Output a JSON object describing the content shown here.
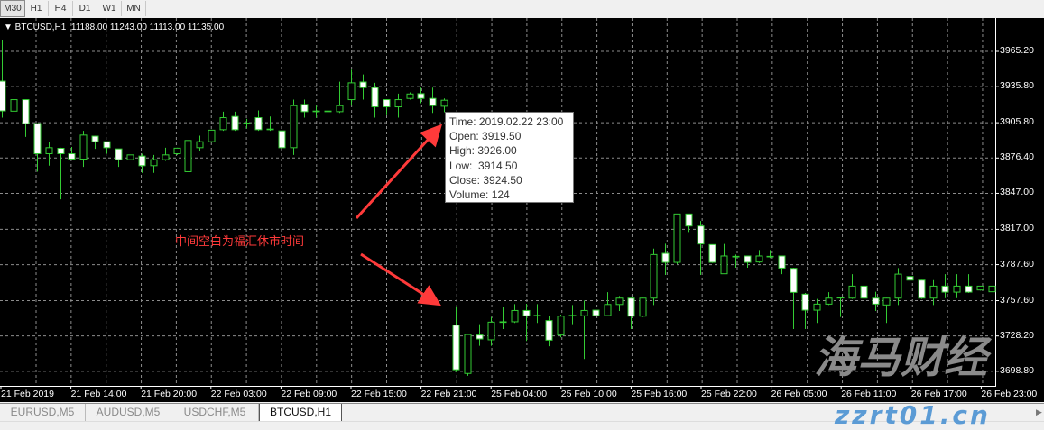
{
  "timeframes": [
    "M30",
    "H1",
    "H4",
    "D1",
    "W1",
    "MN"
  ],
  "selected_timeframe": "M30",
  "chart_header": "▼ BTCUSD,H1  11188.00 11243.00 11113.00 11135.00",
  "tooltip": {
    "time": "Time: 2019.02.22 23:00",
    "open": "Open: 3919.50",
    "high": "High: 3926.00",
    "low": "Low:  3914.50",
    "close": "Close: 3924.50",
    "volume": "Volume: 124"
  },
  "annotation": "中间空白为福汇休市时间",
  "watermark": {
    "logo": "海马财经",
    "site": "zzrt01.cn"
  },
  "tabs": [
    {
      "label": "EURUSD,M5",
      "active": false
    },
    {
      "label": "AUDUSD,M5",
      "active": false
    },
    {
      "label": "USDCHF,M5",
      "active": false
    },
    {
      "label": "BTCUSD,H1",
      "active": true
    }
  ],
  "colors": {
    "background": "#000000",
    "candle": "#33cc33",
    "bear_body": "#ffffff",
    "bull_body": "#000000",
    "grid": "#8c8c8c",
    "annotation": "#ff3a3a"
  },
  "chart_data": {
    "type": "candlestick",
    "symbol": "BTCUSD,H1",
    "ylim": [
      3690,
      3985
    ],
    "y_ticks": [
      "3965.20",
      "3935.80",
      "3905.80",
      "3876.40",
      "3847.00",
      "3817.00",
      "3787.60",
      "3757.60",
      "3728.20",
      "3698.80"
    ],
    "x_ticks": [
      "21 Feb 2019",
      "21 Feb 14:00",
      "21 Feb 20:00",
      "22 Feb 03:00",
      "22 Feb 09:00",
      "22 Feb 15:00",
      "22 Feb 21:00",
      "25 Feb 04:00",
      "25 Feb 10:00",
      "25 Feb 16:00",
      "25 Feb 22:00",
      "26 Feb 05:00",
      "26 Feb 11:00",
      "26 Feb 17:00",
      "26 Feb 23:00"
    ],
    "grid": true,
    "ohlc": [
      [
        3940.4,
        3975,
        3910,
        3915.6
      ],
      [
        3915.4,
        3925,
        3915,
        3925
      ],
      [
        3925,
        3925,
        3894,
        3905
      ],
      [
        3905,
        3905,
        3865,
        3880
      ],
      [
        3880,
        3890,
        3870,
        3885
      ],
      [
        3884.5,
        3885,
        3842,
        3880
      ],
      [
        3880,
        3885.6,
        3875,
        3875.5
      ],
      [
        3875.5,
        3899,
        3869,
        3895.5
      ],
      [
        3894.6,
        3895,
        3884,
        3890
      ],
      [
        3890,
        3890,
        3880,
        3885
      ],
      [
        3884,
        3884,
        3869,
        3875
      ],
      [
        3875,
        3879,
        3875,
        3879
      ],
      [
        3878,
        3880,
        3864,
        3870
      ],
      [
        3870,
        3879,
        3864,
        3875
      ],
      [
        3875,
        3885,
        3874,
        3879
      ],
      [
        3880,
        3885,
        3879,
        3884.6
      ],
      [
        3865,
        3891,
        3865,
        3891
      ],
      [
        3885,
        3895,
        3882,
        3890
      ],
      [
        3890,
        3900,
        3889,
        3899.6
      ],
      [
        3900,
        3915,
        3899,
        3910
      ],
      [
        3911,
        3915,
        3899,
        3900
      ],
      [
        3905,
        3909,
        3901,
        3905.5
      ],
      [
        3910,
        3916,
        3899,
        3900
      ],
      [
        3900.5,
        3911,
        3899,
        3900
      ],
      [
        3899,
        3899,
        3873,
        3885
      ],
      [
        3885,
        3925,
        3879,
        3920
      ],
      [
        3921,
        3925,
        3910,
        3915
      ],
      [
        3915,
        3920,
        3910,
        3915.5
      ],
      [
        3915,
        3925,
        3909,
        3915.5
      ],
      [
        3915,
        3940,
        3914,
        3920
      ],
      [
        3925,
        3950,
        3920,
        3939
      ],
      [
        3939.7,
        3946,
        3925,
        3935
      ],
      [
        3935,
        3939,
        3910,
        3919
      ],
      [
        3925,
        3925,
        3912,
        3919
      ],
      [
        3919,
        3930,
        3910,
        3925
      ],
      [
        3926,
        3931,
        3925,
        3929.7
      ],
      [
        3930,
        3935,
        3922,
        3926
      ],
      [
        3926,
        3935,
        3914,
        3920
      ],
      [
        3919.5,
        3926,
        3914.5,
        3924.5
      ],
      [
        3737.2,
        3752.2,
        3698.1,
        3700.1
      ],
      [
        3697,
        3729.4,
        3695,
        3729.4
      ],
      [
        3729,
        3738,
        3720,
        3725.7
      ],
      [
        3725,
        3744,
        3720,
        3739.7
      ],
      [
        3739.5,
        3752,
        3734,
        3740
      ],
      [
        3740,
        3754.7,
        3739,
        3749.4
      ],
      [
        3749.4,
        3755,
        3724,
        3745
      ],
      [
        3745,
        3754.7,
        3739,
        3745.3
      ],
      [
        3741,
        3745,
        3719.6,
        3724.7
      ],
      [
        3729,
        3746,
        3727,
        3744.7
      ],
      [
        3745,
        3754,
        3738,
        3745.3
      ],
      [
        3745,
        3757.7,
        3709,
        3749.4
      ],
      [
        3749.7,
        3761.5,
        3744,
        3745.2
      ],
      [
        3745.2,
        3764.7,
        3744.7,
        3754.4
      ],
      [
        3754.4,
        3761.5,
        3749,
        3759.7
      ],
      [
        3759.7,
        3760,
        3734,
        3744.7
      ],
      [
        3744.7,
        3760,
        3744,
        3759.7
      ],
      [
        3759.7,
        3801,
        3754,
        3796
      ],
      [
        3797,
        3805,
        3779,
        3789.5
      ],
      [
        3789.5,
        3830,
        3788,
        3829.8
      ],
      [
        3829.8,
        3830,
        3814.8,
        3819.8
      ],
      [
        3819.8,
        3824,
        3779,
        3804.8
      ],
      [
        3804.3,
        3804.3,
        3789,
        3789.5
      ],
      [
        3780,
        3804.8,
        3780,
        3794.8
      ],
      [
        3794,
        3796,
        3785,
        3794.5
      ],
      [
        3794.8,
        3795,
        3785,
        3789.5
      ],
      [
        3789.8,
        3799.8,
        3789,
        3794.8
      ],
      [
        3794.5,
        3799.8,
        3793,
        3794.3
      ],
      [
        3794.8,
        3795,
        3779.7,
        3784.7
      ],
      [
        3784.5,
        3785,
        3734,
        3764.5
      ],
      [
        3763,
        3764,
        3734,
        3749.7
      ],
      [
        3749.7,
        3759,
        3739,
        3754.7
      ],
      [
        3754.7,
        3764.7,
        3754,
        3759.7
      ],
      [
        3760,
        3760.7,
        3744,
        3760.2
      ],
      [
        3759.7,
        3779.7,
        3759,
        3769.7
      ],
      [
        3769.7,
        3775,
        3754,
        3759.7
      ],
      [
        3759.7,
        3765,
        3749,
        3754.7
      ],
      [
        3754,
        3760,
        3739,
        3759.7
      ],
      [
        3759.7,
        3784.7,
        3754,
        3779.7
      ],
      [
        3777.7,
        3790,
        3774,
        3774.7
      ],
      [
        3774.7,
        3775,
        3759,
        3759.7
      ],
      [
        3759.7,
        3774.7,
        3754,
        3769.7
      ],
      [
        3769.7,
        3779.7,
        3759.7,
        3764.7
      ],
      [
        3764.7,
        3779.7,
        3759.7,
        3769.7
      ],
      [
        3769.7,
        3779.7,
        3764,
        3764.7
      ],
      [
        3766.5,
        3770,
        3766,
        3769.7
      ],
      [
        3765,
        3770,
        3765,
        3769.7
      ]
    ]
  }
}
